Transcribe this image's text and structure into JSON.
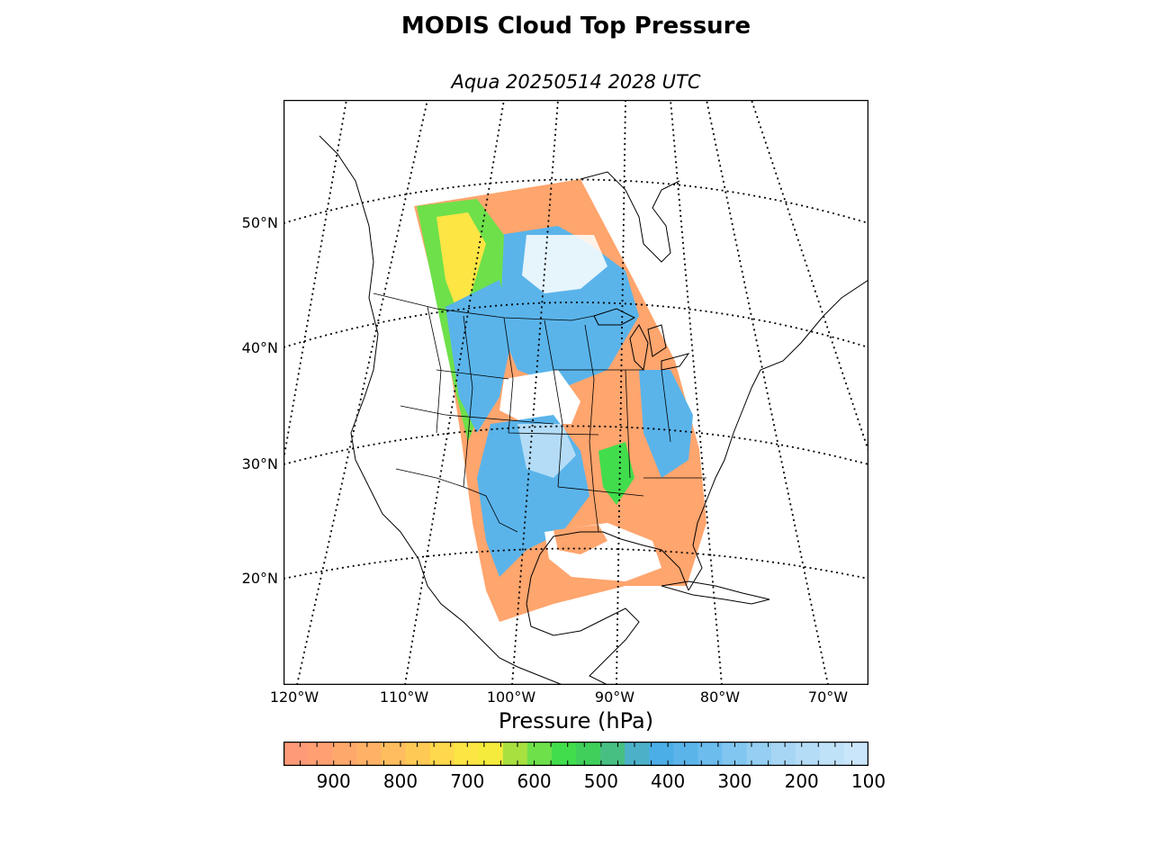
{
  "title": "MODIS Cloud Top Pressure",
  "subtitle": "Aqua 20250514 2028 UTC",
  "lat_labels": [
    "50°N",
    "40°N",
    "30°N",
    "20°N"
  ],
  "lon_labels": [
    "120°W",
    "110°W",
    "100°W",
    "90°W",
    "80°W",
    "70°W"
  ],
  "colorbar": {
    "label": "Pressure (hPa)",
    "ticks": [
      "900",
      "800",
      "700",
      "600",
      "500",
      "400",
      "300",
      "200",
      "100"
    ],
    "tick_values": [
      900,
      800,
      700,
      600,
      500,
      400,
      300,
      200,
      100
    ],
    "range": [
      975,
      100
    ],
    "colors": [
      "#ff9a78",
      "#ff9f72",
      "#ffa86c",
      "#ffb266",
      "#ffbd5f",
      "#ffc955",
      "#ffd84c",
      "#fde544",
      "#f4eb3c",
      "#a8e040",
      "#6ee04a",
      "#41dd4c",
      "#3fcf5a",
      "#47bf82",
      "#4cb1c8",
      "#4caee6",
      "#5ab4ea",
      "#6cbcee",
      "#80c6f0",
      "#94cef2",
      "#a6d6f4",
      "#b4dcf6",
      "#c0e2f8",
      "#cae6fa"
    ]
  },
  "legend_colors": {
    "low_cloud": "#ffa56e",
    "mid_cloud": "#fde544",
    "mid_green": "#41dd4c",
    "high_cloud": "#5ab4ea",
    "very_high": "#b4dcf6"
  }
}
